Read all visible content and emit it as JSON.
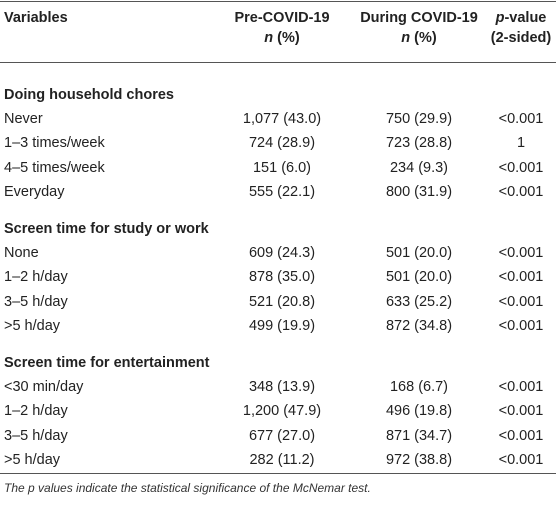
{
  "header": {
    "variables": "Variables",
    "pre": {
      "title": "Pre-COVID-19",
      "unit_italic": "n",
      "unit": " (%)"
    },
    "during": {
      "title": "During COVID-19",
      "unit_italic": "n",
      "unit": " (%)"
    },
    "pvalue": {
      "italic": "p",
      "title": "-value",
      "note": "(2-sided)"
    }
  },
  "sections": [
    {
      "title": "Doing household chores",
      "rows": [
        [
          "Never",
          "1,077 (43.0)",
          "750 (29.9)",
          "<0.001"
        ],
        [
          "1–3 times/week",
          "724 (28.9)",
          "723 (28.8)",
          "1"
        ],
        [
          "4–5 times/week",
          "151 (6.0)",
          "234 (9.3)",
          "<0.001"
        ],
        [
          "Everyday",
          "555 (22.1)",
          "800 (31.9)",
          "<0.001"
        ]
      ]
    },
    {
      "title": "Screen time for study or work",
      "rows": [
        [
          "None",
          "609 (24.3)",
          "501 (20.0)",
          "<0.001"
        ],
        [
          "1–2 h/day",
          "878 (35.0)",
          "501 (20.0)",
          "<0.001"
        ],
        [
          "3–5 h/day",
          "521 (20.8)",
          "633 (25.2)",
          "<0.001"
        ],
        [
          ">5 h/day",
          "499 (19.9)",
          "872 (34.8)",
          "<0.001"
        ]
      ]
    },
    {
      "title": "Screen time for entertainment",
      "rows": [
        [
          "<30 min/day",
          "348 (13.9)",
          "168 (6.7)",
          "<0.001"
        ],
        [
          "1–2 h/day",
          "1,200 (47.9)",
          "496 (19.8)",
          "<0.001"
        ],
        [
          "3–5 h/day",
          "677 (27.0)",
          "871 (34.7)",
          "<0.001"
        ],
        [
          ">5 h/day",
          "282 (11.2)",
          "972 (38.8)",
          "<0.001"
        ]
      ]
    }
  ],
  "footnote": "The p values indicate the statistical significance of the McNemar test."
}
